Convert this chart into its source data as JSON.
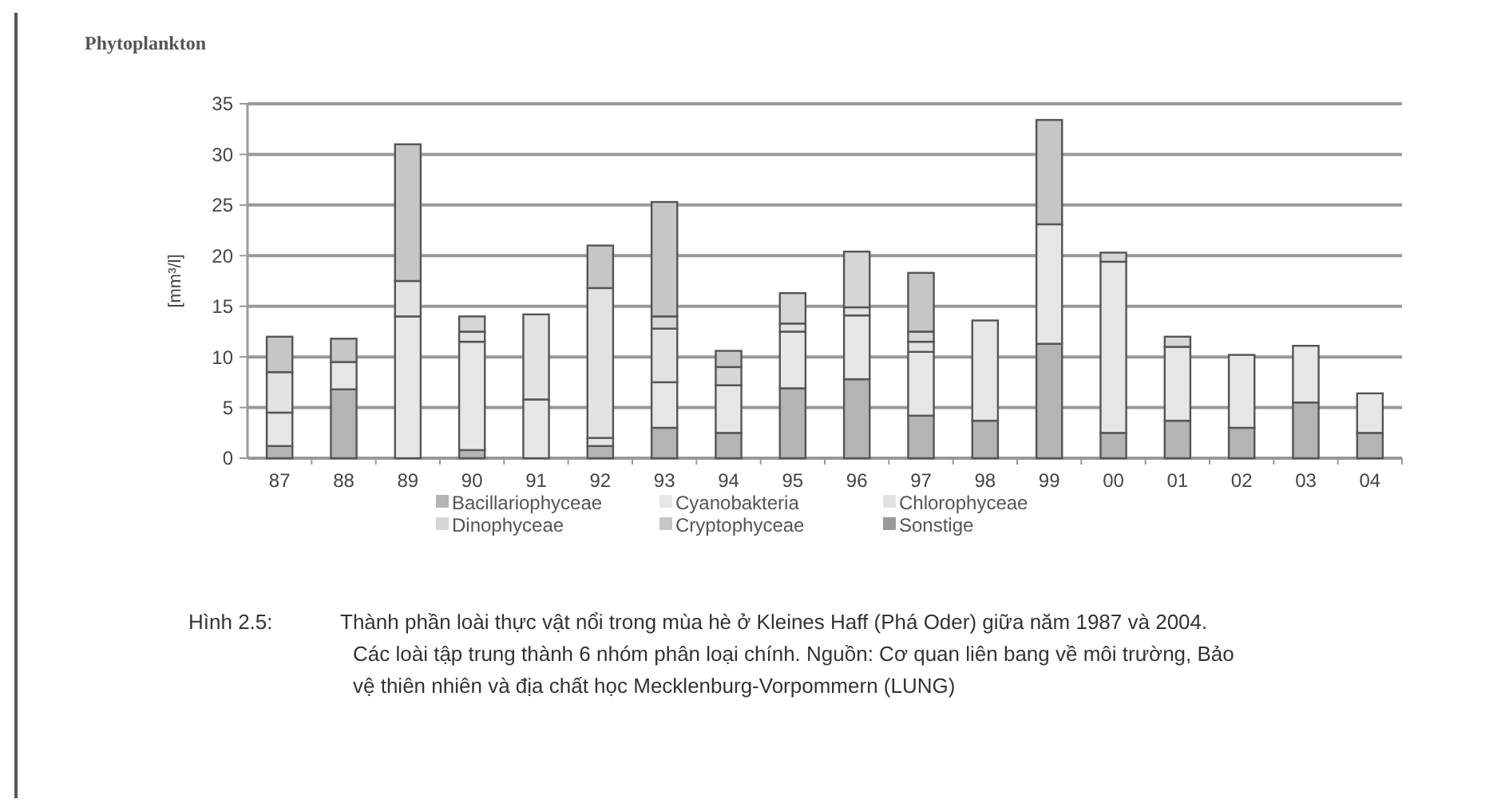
{
  "chart_data": {
    "type": "bar",
    "stacked": true,
    "title": "Phytoplankton",
    "ylabel": "[mm³/l]",
    "categories": [
      "87",
      "88",
      "89",
      "90",
      "91",
      "92",
      "93",
      "94",
      "95",
      "96",
      "97",
      "98",
      "99",
      "00",
      "01",
      "02",
      "03",
      "04"
    ],
    "series": [
      {
        "name": "Bacillariophyceae",
        "color": "#b4b4b4",
        "values": [
          1.2,
          6.8,
          0,
          0.8,
          0,
          1.2,
          3,
          2.5,
          6.9,
          7.8,
          4.2,
          3.7,
          11.3,
          2.5,
          3.7,
          3,
          5.5,
          2.5
        ]
      },
      {
        "name": "Cyanobakteria",
        "color": "#e6e6e6",
        "values": [
          3.3,
          2.7,
          14,
          10.7,
          5.8,
          0.8,
          4.5,
          4.7,
          5.6,
          6.3,
          6.3,
          9.9,
          11.8,
          16.9,
          7.3,
          7.2,
          5.6,
          3.9
        ]
      },
      {
        "name": "Chlorophyceae",
        "color": "#e2e2e2",
        "values": [
          4,
          0,
          3.5,
          1,
          8.4,
          14.8,
          5.3,
          0,
          0.8,
          0.8,
          1,
          0,
          0,
          0,
          0,
          0,
          0,
          0
        ]
      },
      {
        "name": "Dinophyceae",
        "color": "#d6d6d6",
        "values": [
          0,
          0,
          0,
          1.5,
          0,
          0,
          1.2,
          1.8,
          3,
          5.5,
          1,
          0,
          0,
          0.9,
          1,
          0,
          0,
          0
        ]
      },
      {
        "name": "Cryptophyceae",
        "color": "#c6c6c6",
        "values": [
          3.5,
          2.3,
          13.5,
          0,
          0,
          4.2,
          11.3,
          1.6,
          0,
          0,
          5.8,
          0,
          10.3,
          0,
          0,
          0,
          0,
          0
        ]
      },
      {
        "name": "Sonstige",
        "color": "#9a9a9a",
        "values": [
          0,
          0,
          0,
          0,
          0,
          0,
          0,
          0,
          0,
          0,
          0,
          0,
          0,
          0,
          0,
          0,
          0,
          0
        ]
      }
    ],
    "ylim": [
      0,
      35
    ],
    "yticks": [
      0,
      5,
      10,
      15,
      20,
      25,
      30,
      35
    ],
    "grid": "y",
    "legend": "bottom",
    "annotations": [
      "Hình 2.5:",
      "Thành phần loài thực vật nổi trong mùa hè ở Kleines Haff (Phá Oder) giữa năm 1987 và 2004. Các loài tập trung thành 6 nhóm phân loại chính. Nguồn: Cơ quan liên bang về môi trường, Bảo vệ thiên nhiên và địa chất học Mecklenburg-Vorpommern (LUNG)"
    ]
  }
}
